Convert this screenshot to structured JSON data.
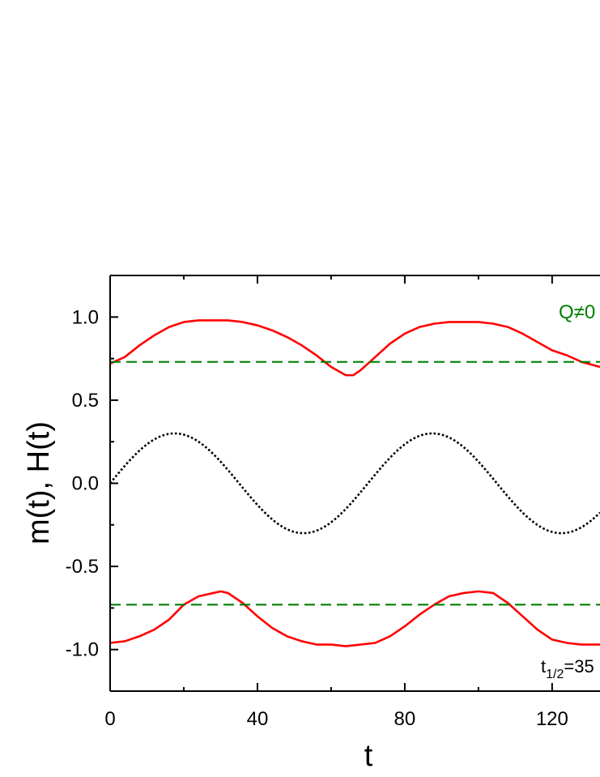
{
  "chart_data": {
    "type": "line",
    "xlabel": "t",
    "ylabel": "m(t), H(t)",
    "xlim": [
      0,
      133
    ],
    "ylim": [
      -1.25,
      1.25
    ],
    "x_ticks": [
      0,
      40,
      80,
      120
    ],
    "x_tick_labels": [
      "0",
      "40",
      "80",
      "120"
    ],
    "y_ticks": [
      -1.0,
      -0.5,
      0.0,
      0.5,
      1.0
    ],
    "y_tick_labels": [
      "-1.0",
      "-0.5",
      "0.0",
      "0.5",
      "1.0"
    ],
    "grid": false,
    "annotations": {
      "q_label": "Q≠0",
      "t_half_main": "t",
      "t_half_sub": "1/2",
      "t_half_value": "=35"
    },
    "colors": {
      "magnetization": "#ff0000",
      "threshold": "#008000",
      "field": "#000000",
      "axis": "#000000"
    },
    "series": [
      {
        "style": "solid",
        "color": "#ff0000",
        "x": [
          0,
          4,
          8,
          12,
          16,
          20,
          24,
          28,
          32,
          36,
          40,
          44,
          48,
          52,
          56,
          60,
          64,
          66,
          68,
          72,
          76,
          80,
          84,
          88,
          92,
          96,
          100,
          104,
          108,
          112,
          116,
          120,
          124,
          128,
          133
        ],
        "y": [
          0.72,
          0.76,
          0.83,
          0.89,
          0.94,
          0.97,
          0.98,
          0.98,
          0.98,
          0.97,
          0.95,
          0.92,
          0.88,
          0.83,
          0.77,
          0.7,
          0.65,
          0.65,
          0.68,
          0.76,
          0.84,
          0.9,
          0.94,
          0.96,
          0.97,
          0.97,
          0.97,
          0.96,
          0.94,
          0.9,
          0.85,
          0.8,
          0.77,
          0.73,
          0.7
        ]
      },
      {
        "style": "solid",
        "color": "#ff0000",
        "x": [
          0,
          4,
          8,
          12,
          16,
          20,
          24,
          28,
          30,
          32,
          36,
          40,
          44,
          48,
          52,
          56,
          60,
          64,
          68,
          72,
          76,
          80,
          84,
          88,
          92,
          96,
          100,
          104,
          108,
          112,
          116,
          120,
          124,
          128,
          133
        ],
        "y": [
          -0.96,
          -0.95,
          -0.92,
          -0.88,
          -0.82,
          -0.73,
          -0.68,
          -0.66,
          -0.65,
          -0.66,
          -0.72,
          -0.8,
          -0.87,
          -0.92,
          -0.95,
          -0.97,
          -0.97,
          -0.98,
          -0.97,
          -0.96,
          -0.92,
          -0.86,
          -0.79,
          -0.73,
          -0.68,
          -0.66,
          -0.65,
          -0.66,
          -0.72,
          -0.8,
          -0.88,
          -0.94,
          -0.96,
          -0.97,
          -0.97
        ]
      },
      {
        "style": "dashed",
        "color": "#008000",
        "x": [
          0,
          133
        ],
        "y": [
          0.73,
          0.73
        ]
      },
      {
        "style": "dashed",
        "color": "#008000",
        "x": [
          0,
          133
        ],
        "y": [
          -0.73,
          -0.73
        ]
      },
      {
        "style": "dotted",
        "color": "#000000",
        "function": "0.3*sin(2*pi*t/70)",
        "amplitude": 0.3,
        "period": 70,
        "x_range": [
          0,
          133
        ]
      }
    ]
  }
}
